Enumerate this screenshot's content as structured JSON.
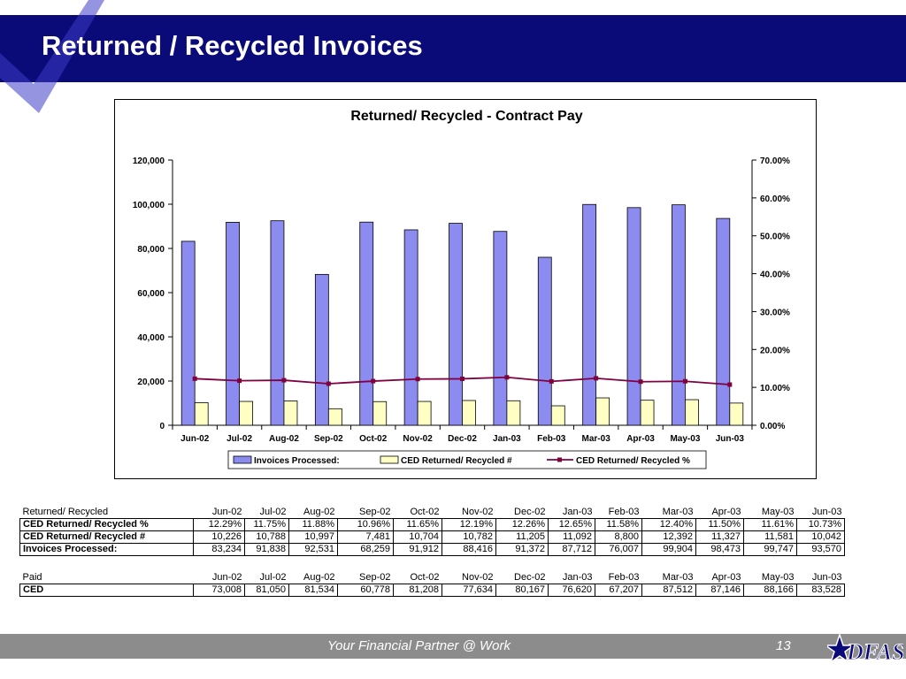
{
  "slide": {
    "title": "Returned / Recycled Invoices",
    "footer_text": "Your Financial Partner @ Work",
    "page_number": "13",
    "logo_text": "DFAS"
  },
  "colors": {
    "header": "#0a0a78",
    "bar_invoices": "#8b8bf0",
    "bar_ced": "#ffffc4",
    "line": "#800040",
    "footer": "#8c8c8c"
  },
  "chart_data": {
    "type": "bar",
    "title": "Returned/ Recycled - Contract Pay",
    "categories": [
      "Jun-02",
      "Jul-02",
      "Aug-02",
      "Sep-02",
      "Oct-02",
      "Nov-02",
      "Dec-02",
      "Jan-03",
      "Feb-03",
      "Mar-03",
      "Apr-03",
      "May-03",
      "Jun-03"
    ],
    "series": [
      {
        "name": "Invoices Processed:",
        "type": "bar",
        "axis": "left",
        "values": [
          83234,
          91838,
          92531,
          68259,
          91912,
          88416,
          91372,
          87712,
          76007,
          99904,
          98473,
          99747,
          93570
        ]
      },
      {
        "name": "CED Returned/ Recycled #",
        "type": "bar",
        "axis": "left",
        "values": [
          10226,
          10788,
          10997,
          7481,
          10704,
          10782,
          11205,
          11092,
          8800,
          12392,
          11327,
          11581,
          10042
        ]
      },
      {
        "name": "CED Returned/ Recycled %",
        "type": "line",
        "axis": "right",
        "values": [
          12.29,
          11.75,
          11.88,
          10.96,
          11.65,
          12.19,
          12.26,
          12.65,
          11.58,
          12.4,
          11.5,
          11.61,
          10.73
        ]
      }
    ],
    "ylim": [
      0,
      120000
    ],
    "y_ticks": [
      "0",
      "20,000",
      "40,000",
      "60,000",
      "80,000",
      "100,000",
      "120,000"
    ],
    "y2lim": [
      0,
      70
    ],
    "y2_ticks": [
      "0.00%",
      "10.00%",
      "20.00%",
      "30.00%",
      "40.00%",
      "50.00%",
      "60.00%",
      "70.00%"
    ],
    "legend_position": "bottom",
    "grid": false
  },
  "table1": {
    "header": [
      "Returned/ Recycled",
      "Jun-02",
      "Jul-02",
      "Aug-02",
      "Sep-02",
      "Oct-02",
      "Nov-02",
      "Dec-02",
      "Jan-03",
      "Feb-03",
      "Mar-03",
      "Apr-03",
      "May-03",
      "Jun-03"
    ],
    "rows": [
      [
        "CED Returned/ Recycled %",
        "12.29%",
        "11.75%",
        "11.88%",
        "10.96%",
        "11.65%",
        "12.19%",
        "12.26%",
        "12.65%",
        "11.58%",
        "12.40%",
        "11.50%",
        "11.61%",
        "10.73%"
      ],
      [
        "CED Returned/ Recycled #",
        "10,226",
        "10,788",
        "10,997",
        "7,481",
        "10,704",
        "10,782",
        "11,205",
        "11,092",
        "8,800",
        "12,392",
        "11,327",
        "11,581",
        "10,042"
      ],
      [
        "Invoices Processed:",
        "83,234",
        "91,838",
        "92,531",
        "68,259",
        "91,912",
        "88,416",
        "91,372",
        "87,712",
        "76,007",
        "99,904",
        "98,473",
        "99,747",
        "93,570"
      ]
    ]
  },
  "table2": {
    "header": [
      "Paid",
      "Jun-02",
      "Jul-02",
      "Aug-02",
      "Sep-02",
      "Oct-02",
      "Nov-02",
      "Dec-02",
      "Jan-03",
      "Feb-03",
      "Mar-03",
      "Apr-03",
      "May-03",
      "Jun-03"
    ],
    "rows": [
      [
        "CED",
        "73,008",
        "81,050",
        "81,534",
        "60,778",
        "81,208",
        "77,634",
        "80,167",
        "76,620",
        "67,207",
        "87,512",
        "87,146",
        "88,166",
        "83,528"
      ]
    ]
  }
}
